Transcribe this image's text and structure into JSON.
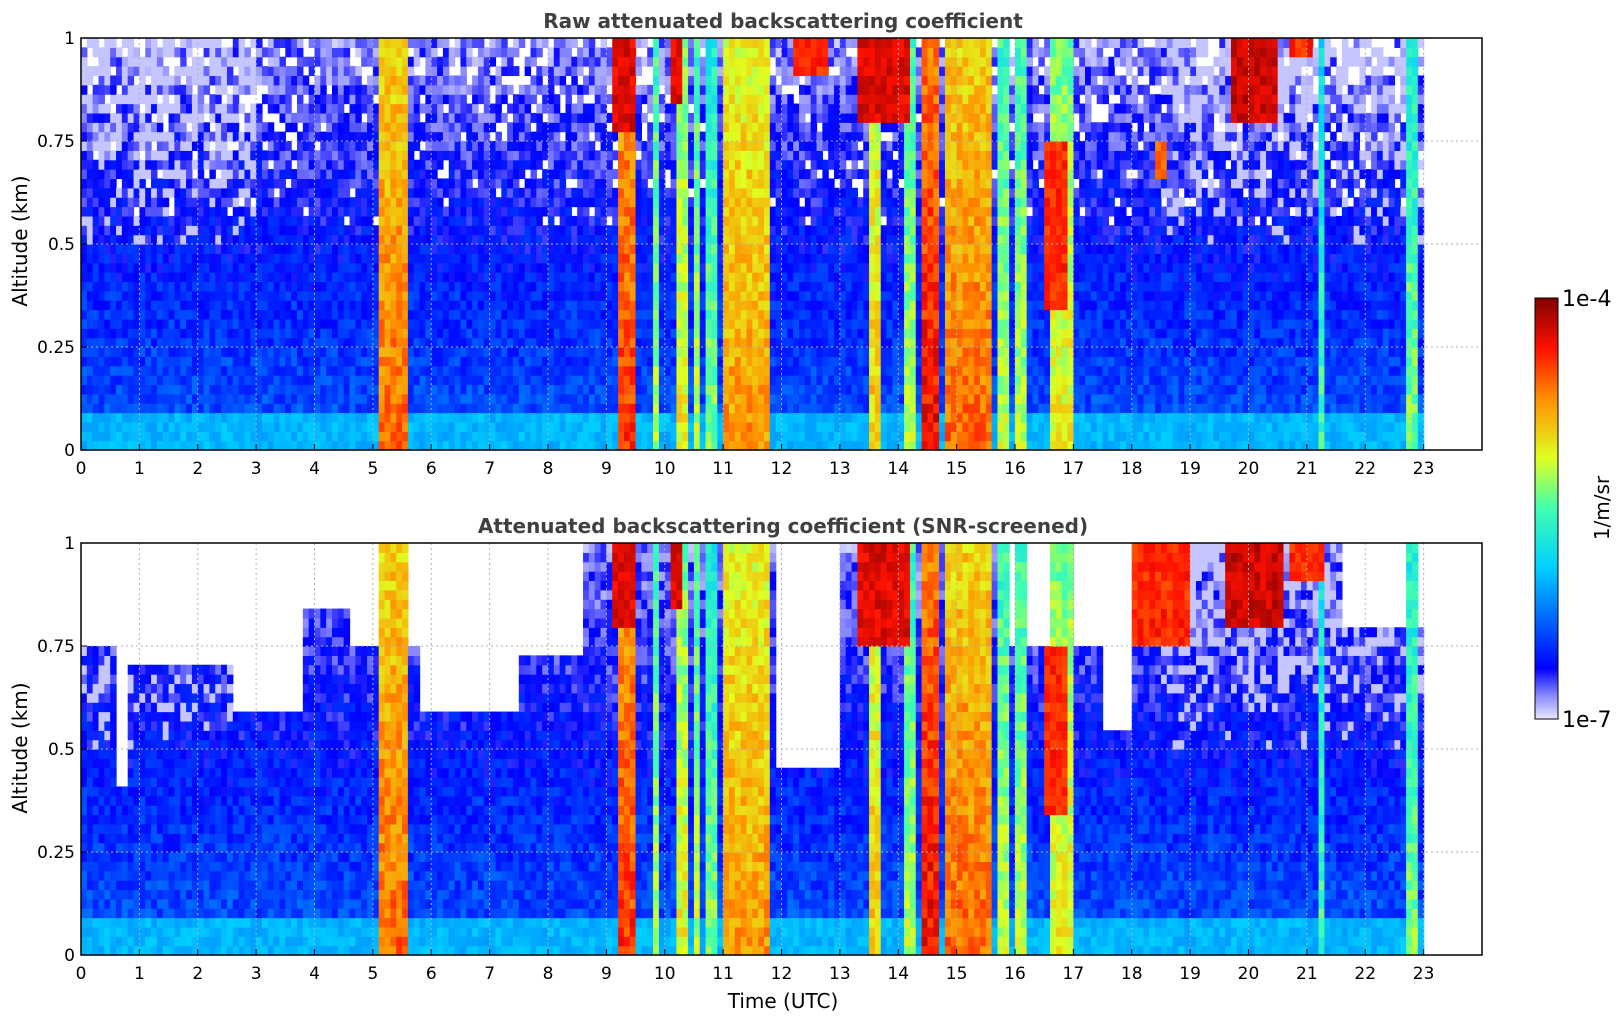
{
  "chart_data": [
    {
      "type": "heatmap",
      "title": "Raw attenuated backscattering coefficient",
      "xlabel": "",
      "ylabel": "Altitude (km)",
      "xlim": [
        0,
        24
      ],
      "ylim": [
        0,
        1
      ],
      "xticks": [
        "0",
        "1",
        "2",
        "3",
        "4",
        "5",
        "6",
        "7",
        "8",
        "9",
        "10",
        "11",
        "12",
        "13",
        "14",
        "15",
        "16",
        "17",
        "18",
        "19",
        "20",
        "21",
        "22",
        "23"
      ],
      "yticks": [
        "0",
        "0.25",
        "0.5",
        "0.75",
        "1"
      ],
      "data_extent_hours": [
        0,
        23
      ],
      "grid": true,
      "screened": false,
      "features": [
        {
          "start": 5.15,
          "end": 5.55,
          "level": 0.8
        },
        {
          "start": 9.2,
          "end": 9.45,
          "level": 0.85
        },
        {
          "start": 9.8,
          "end": 9.9,
          "level": 0.6
        },
        {
          "start": 10.25,
          "end": 10.35,
          "level": 0.65
        },
        {
          "start": 10.5,
          "end": 10.6,
          "level": 0.6
        },
        {
          "start": 10.75,
          "end": 10.85,
          "level": 0.55
        },
        {
          "start": 11.05,
          "end": 11.8,
          "level": 0.75
        },
        {
          "start": 13.5,
          "end": 13.7,
          "level": 0.7
        },
        {
          "start": 14.15,
          "end": 14.3,
          "level": 0.6
        },
        {
          "start": 14.45,
          "end": 14.65,
          "level": 0.9
        },
        {
          "start": 14.85,
          "end": 15.55,
          "level": 0.8
        },
        {
          "start": 15.75,
          "end": 15.85,
          "level": 0.6
        },
        {
          "start": 16.05,
          "end": 16.2,
          "level": 0.6
        },
        {
          "start": 16.6,
          "end": 16.95,
          "level": 0.65
        },
        {
          "start": 21.2,
          "end": 21.3,
          "level": 0.5
        },
        {
          "start": 22.75,
          "end": 22.85,
          "level": 0.55
        }
      ],
      "clouds": [
        {
          "start": 9.15,
          "end": 9.5,
          "alt_min": 0.78,
          "alt_max": 1.0,
          "level": 0.95
        },
        {
          "start": 10.1,
          "end": 10.3,
          "alt_min": 0.85,
          "alt_max": 1.0,
          "level": 0.95
        },
        {
          "start": 12.2,
          "end": 12.8,
          "alt_min": 0.9,
          "alt_max": 1.0,
          "level": 0.9
        },
        {
          "start": 13.3,
          "end": 14.2,
          "alt_min": 0.8,
          "alt_max": 1.0,
          "level": 0.95
        },
        {
          "start": 16.5,
          "end": 16.9,
          "alt_min": 0.35,
          "alt_max": 0.75,
          "level": 0.9
        },
        {
          "start": 18.4,
          "end": 18.6,
          "alt_min": 0.65,
          "alt_max": 0.75,
          "level": 0.85
        },
        {
          "start": 19.7,
          "end": 20.5,
          "alt_min": 0.8,
          "alt_max": 1.0,
          "level": 0.97
        },
        {
          "start": 20.7,
          "end": 21.1,
          "alt_min": 0.95,
          "alt_max": 1.0,
          "level": 0.9
        }
      ]
    },
    {
      "type": "heatmap",
      "title": "Attenuated backscattering coefficient (SNR-screened)",
      "xlabel": "Time (UTC)",
      "ylabel": "Altitude (km)",
      "xlim": [
        0,
        24
      ],
      "ylim": [
        0,
        1
      ],
      "xticks": [
        "0",
        "1",
        "2",
        "3",
        "4",
        "5",
        "6",
        "7",
        "8",
        "9",
        "10",
        "11",
        "12",
        "13",
        "14",
        "15",
        "16",
        "17",
        "18",
        "19",
        "20",
        "21",
        "22",
        "23"
      ],
      "yticks": [
        "0",
        "0.25",
        "0.5",
        "0.75",
        "1"
      ],
      "data_extent_hours": [
        0,
        23
      ],
      "grid": true,
      "screened": true,
      "features": [
        {
          "start": 5.15,
          "end": 5.55,
          "level": 0.8
        },
        {
          "start": 9.2,
          "end": 9.45,
          "level": 0.85
        },
        {
          "start": 9.8,
          "end": 9.9,
          "level": 0.6
        },
        {
          "start": 10.25,
          "end": 10.35,
          "level": 0.65
        },
        {
          "start": 10.5,
          "end": 10.6,
          "level": 0.6
        },
        {
          "start": 10.75,
          "end": 10.85,
          "level": 0.55
        },
        {
          "start": 11.05,
          "end": 11.8,
          "level": 0.75
        },
        {
          "start": 13.5,
          "end": 13.7,
          "level": 0.7
        },
        {
          "start": 14.15,
          "end": 14.3,
          "level": 0.6
        },
        {
          "start": 14.45,
          "end": 14.65,
          "level": 0.9
        },
        {
          "start": 14.85,
          "end": 15.55,
          "level": 0.8
        },
        {
          "start": 15.75,
          "end": 15.85,
          "level": 0.6
        },
        {
          "start": 16.05,
          "end": 16.2,
          "level": 0.6
        },
        {
          "start": 16.6,
          "end": 16.95,
          "level": 0.65
        },
        {
          "start": 21.2,
          "end": 21.3,
          "level": 0.5
        },
        {
          "start": 22.75,
          "end": 22.85,
          "level": 0.55
        }
      ],
      "clouds": [
        {
          "start": 9.15,
          "end": 9.5,
          "alt_min": 0.8,
          "alt_max": 1.0,
          "level": 0.95
        },
        {
          "start": 10.1,
          "end": 10.3,
          "alt_min": 0.85,
          "alt_max": 1.0,
          "level": 0.95
        },
        {
          "start": 13.3,
          "end": 14.2,
          "alt_min": 0.75,
          "alt_max": 1.0,
          "level": 0.95
        },
        {
          "start": 16.5,
          "end": 16.9,
          "alt_min": 0.35,
          "alt_max": 0.75,
          "level": 0.9
        },
        {
          "start": 18.0,
          "end": 19.0,
          "alt_min": 0.75,
          "alt_max": 1.0,
          "level": 0.9
        },
        {
          "start": 19.6,
          "end": 20.6,
          "alt_min": 0.8,
          "alt_max": 1.0,
          "level": 0.97
        },
        {
          "start": 20.7,
          "end": 21.3,
          "alt_min": 0.92,
          "alt_max": 1.0,
          "level": 0.9
        }
      ],
      "masked_top_km": [
        {
          "start": 0.0,
          "end": 0.6,
          "top": 0.75
        },
        {
          "start": 0.6,
          "end": 0.8,
          "top": 0.42
        },
        {
          "start": 0.8,
          "end": 2.6,
          "top": 0.7
        },
        {
          "start": 2.6,
          "end": 3.8,
          "top": 0.6
        },
        {
          "start": 3.8,
          "end": 4.6,
          "top": 0.85
        },
        {
          "start": 4.6,
          "end": 5.8,
          "top": 0.75
        },
        {
          "start": 5.8,
          "end": 7.5,
          "top": 0.6
        },
        {
          "start": 7.5,
          "end": 8.6,
          "top": 0.72
        },
        {
          "start": 8.6,
          "end": 9.6,
          "top": 1.0
        },
        {
          "start": 9.6,
          "end": 11.9,
          "top": 1.0
        },
        {
          "start": 11.9,
          "end": 13.0,
          "top": 0.45
        },
        {
          "start": 13.0,
          "end": 15.7,
          "top": 1.0
        },
        {
          "start": 15.7,
          "end": 17.5,
          "top": 0.75
        },
        {
          "start": 17.5,
          "end": 18.0,
          "top": 0.55
        },
        {
          "start": 18.0,
          "end": 21.6,
          "top": 1.0
        },
        {
          "start": 21.6,
          "end": 23.0,
          "top": 0.8
        }
      ]
    }
  ],
  "colorbar": {
    "max_label": "1e-4",
    "min_label": "1e-7",
    "unit_label": "1/m/sr"
  },
  "colors": {
    "text_title": "#404040",
    "axis": "#000000",
    "grid": "#b0b0b0",
    "background": "#ffffff"
  }
}
